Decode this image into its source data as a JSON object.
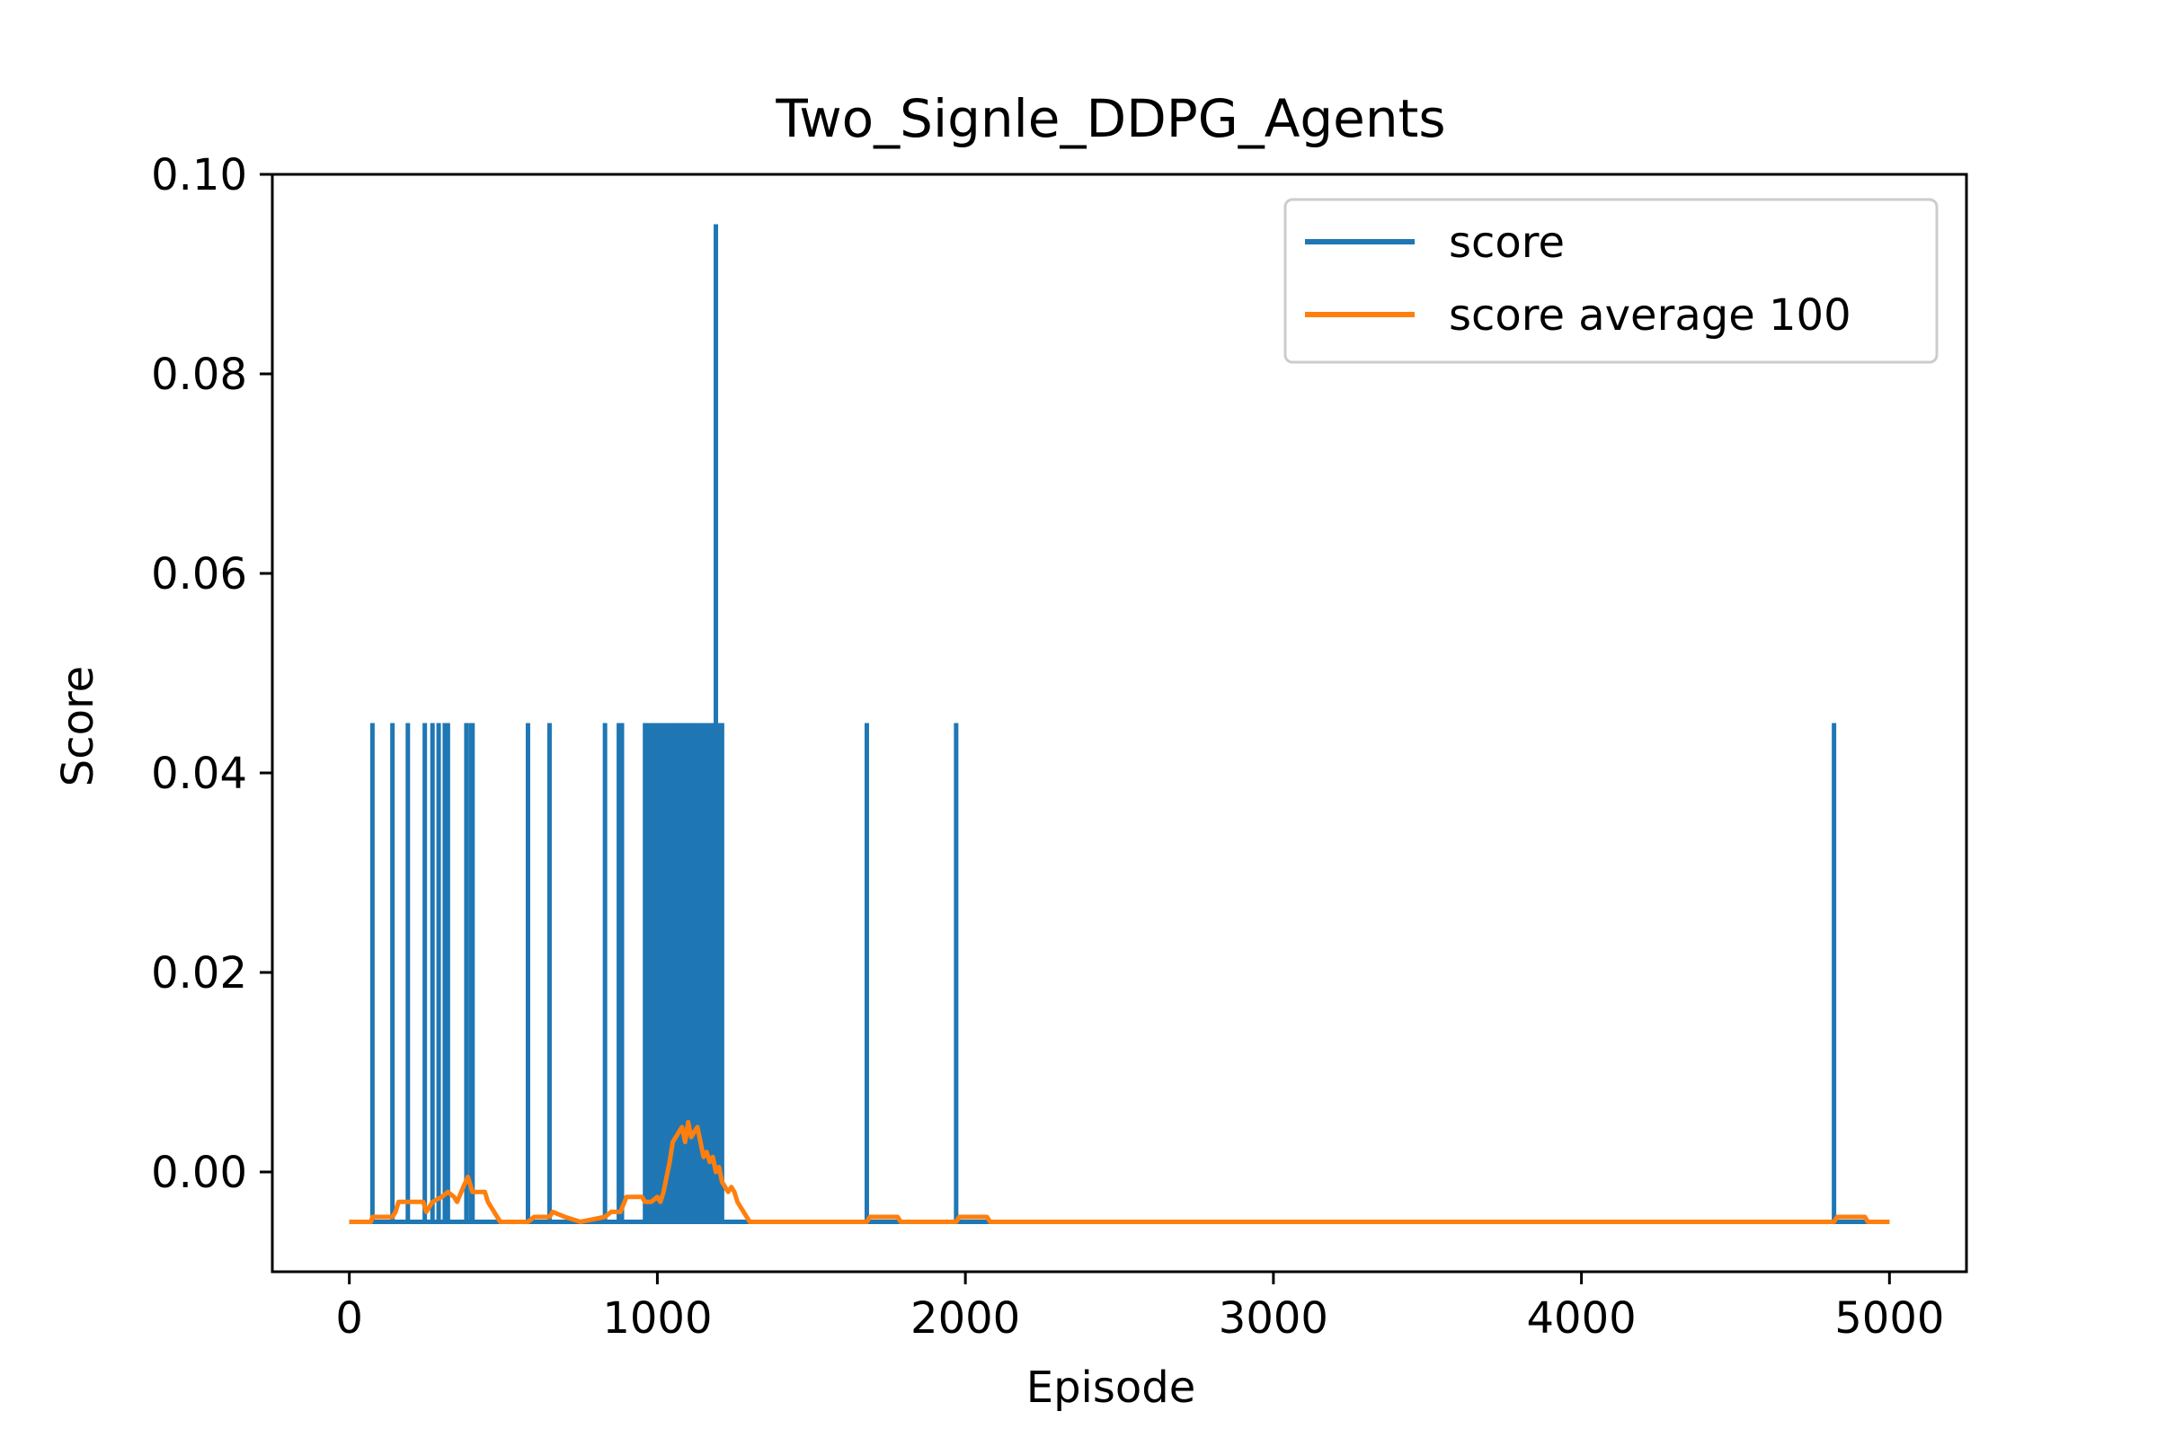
{
  "chart_data": {
    "type": "line",
    "title": "Two_Signle_DDPG_Agents",
    "xlabel": "Episode",
    "ylabel": "Score",
    "xlim": [
      -250,
      5250
    ],
    "ylim": [
      -0.01,
      0.1
    ],
    "x_ticks": [
      0,
      1000,
      2000,
      3000,
      4000,
      5000
    ],
    "x_tick_labels": [
      "0",
      "1000",
      "2000",
      "3000",
      "4000",
      "5000"
    ],
    "y_ticks": [
      0.0,
      0.02,
      0.04,
      0.06,
      0.08,
      0.1
    ],
    "y_tick_labels": [
      "0.00",
      "0.02",
      "0.04",
      "0.06",
      "0.08",
      "0.10"
    ],
    "grid": false,
    "legend_position": "top-right",
    "series": [
      {
        "name": "score",
        "color": "#1f77b4",
        "baseline": -0.005,
        "x_range": [
          0,
          5000
        ],
        "spike_episodes": [
          75,
          140,
          190,
          245,
          270,
          290,
          310,
          320,
          380,
          395,
          400,
          580,
          650,
          830,
          875,
          885,
          960,
          965,
          970,
          975,
          980,
          985,
          990,
          995,
          1000,
          1005,
          1010,
          1015,
          1020,
          1025,
          1030,
          1035,
          1040,
          1045,
          1050,
          1055,
          1060,
          1065,
          1070,
          1075,
          1080,
          1085,
          1090,
          1095,
          1100,
          1105,
          1110,
          1115,
          1120,
          1125,
          1130,
          1135,
          1140,
          1145,
          1150,
          1155,
          1160,
          1165,
          1170,
          1175,
          1180,
          1190,
          1200,
          1205,
          1210,
          1680,
          1970,
          4820
        ],
        "spike_values": [
          0.045,
          0.045,
          0.045,
          0.045,
          0.045,
          0.045,
          0.045,
          0.045,
          0.045,
          0.045,
          0.045,
          0.045,
          0.045,
          0.045,
          0.045,
          0.045,
          0.045,
          0.045,
          0.045,
          0.045,
          0.045,
          0.045,
          0.045,
          0.045,
          0.045,
          0.045,
          0.045,
          0.045,
          0.045,
          0.045,
          0.045,
          0.045,
          0.045,
          0.045,
          0.045,
          0.045,
          0.045,
          0.045,
          0.045,
          0.045,
          0.045,
          0.045,
          0.045,
          0.045,
          0.045,
          0.045,
          0.045,
          0.045,
          0.045,
          0.045,
          0.045,
          0.045,
          0.045,
          0.045,
          0.045,
          0.045,
          0.045,
          0.045,
          0.045,
          0.045,
          0.045,
          0.095,
          0.045,
          0.045,
          0.045,
          0.045,
          0.045,
          0.045
        ]
      },
      {
        "name": "score average 100",
        "color": "#ff7f0e",
        "x": [
          0,
          70,
          75,
          140,
          150,
          160,
          240,
          250,
          260,
          270,
          300,
          320,
          340,
          350,
          370,
          385,
          400,
          410,
          440,
          450,
          490,
          500,
          580,
          600,
          650,
          660,
          700,
          750,
          830,
          850,
          880,
          900,
          950,
          960,
          980,
          1000,
          1010,
          1020,
          1030,
          1040,
          1050,
          1060,
          1070,
          1080,
          1090,
          1100,
          1110,
          1120,
          1130,
          1140,
          1150,
          1160,
          1170,
          1180,
          1190,
          1200,
          1210,
          1220,
          1230,
          1240,
          1250,
          1260,
          1270,
          1280,
          1290,
          1300,
          1310,
          1680,
          1690,
          1780,
          1790,
          1970,
          1980,
          2070,
          2080,
          4820,
          4830,
          4920,
          4930,
          5000
        ],
        "y": [
          -0.005,
          -0.005,
          -0.0045,
          -0.0045,
          -0.004,
          -0.003,
          -0.003,
          -0.004,
          -0.0035,
          -0.003,
          -0.0025,
          -0.002,
          -0.0025,
          -0.003,
          -0.0015,
          -0.0005,
          -0.002,
          -0.002,
          -0.002,
          -0.003,
          -0.005,
          -0.005,
          -0.005,
          -0.0045,
          -0.0045,
          -0.004,
          -0.0045,
          -0.005,
          -0.0045,
          -0.004,
          -0.004,
          -0.0025,
          -0.0025,
          -0.003,
          -0.003,
          -0.0025,
          -0.003,
          -0.002,
          -0.0005,
          0.001,
          0.003,
          0.0035,
          0.004,
          0.0045,
          0.003,
          0.005,
          0.0035,
          0.004,
          0.0045,
          0.003,
          0.0015,
          0.002,
          0.001,
          0.0015,
          0.0,
          0.0005,
          -0.001,
          -0.0015,
          -0.002,
          -0.0015,
          -0.002,
          -0.003,
          -0.0035,
          -0.004,
          -0.0045,
          -0.005,
          -0.005,
          -0.005,
          -0.0045,
          -0.0045,
          -0.005,
          -0.005,
          -0.0045,
          -0.0045,
          -0.005,
          -0.005,
          -0.0045,
          -0.0045,
          -0.005,
          -0.005
        ]
      }
    ]
  }
}
